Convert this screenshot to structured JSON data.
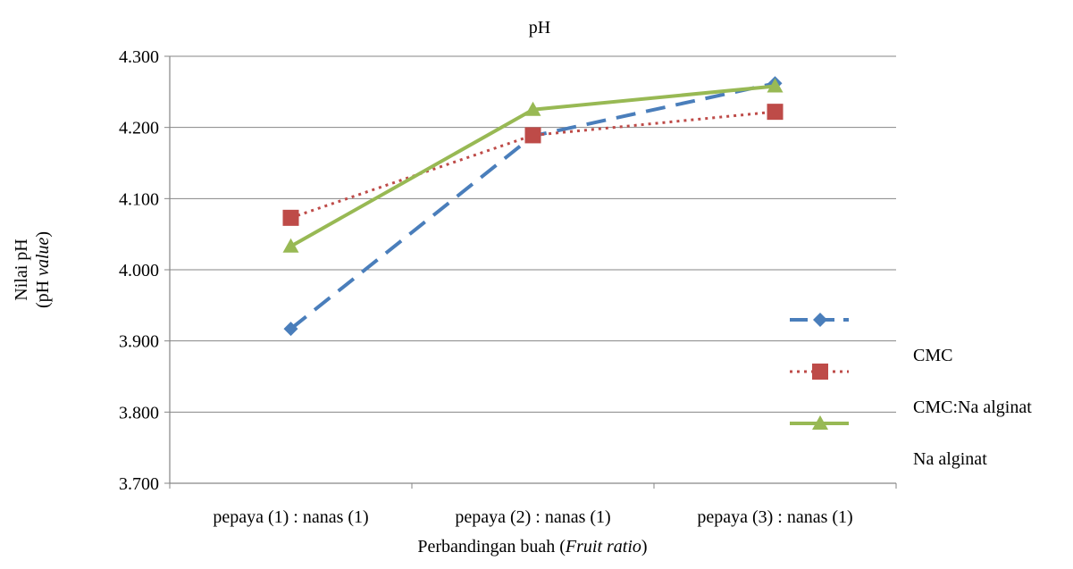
{
  "chart_data": {
    "type": "line",
    "title": "pH",
    "ylabel_line1": "Nilai pH",
    "ylabel_line2_prefix": "(pH ",
    "ylabel_line2_italic": "value",
    "ylabel_line2_suffix": ")",
    "xlabel_prefix": "Perbandingan buah (",
    "xlabel_italic": "Fruit ratio",
    "xlabel_suffix": ")",
    "categories": [
      "pepaya (1) : nanas (1)",
      "pepaya (2) : nanas (1)",
      "pepaya (3) : nanas (1)"
    ],
    "ylim": [
      3.7,
      4.3
    ],
    "yticks": [
      3.7,
      3.8,
      3.9,
      4.0,
      4.1,
      4.2,
      4.3
    ],
    "ytick_labels": [
      "3.700",
      "3.800",
      "3.900",
      "4.000",
      "4.100",
      "4.200",
      "4.300"
    ],
    "grid": true,
    "legend_position": "right",
    "series": [
      {
        "name": "CMC",
        "values": [
          3.917,
          4.188,
          4.262
        ],
        "color": "#4a7ebb",
        "dash": "dashed",
        "marker": "diamond"
      },
      {
        "name": "CMC:Na alginat",
        "values": [
          4.073,
          4.189,
          4.222
        ],
        "color": "#be4b48",
        "dash": "dotted",
        "marker": "square"
      },
      {
        "name": "Na alginat",
        "values": [
          4.033,
          4.225,
          4.258
        ],
        "color": "#98b954",
        "dash": "solid",
        "marker": "triangle"
      }
    ]
  }
}
